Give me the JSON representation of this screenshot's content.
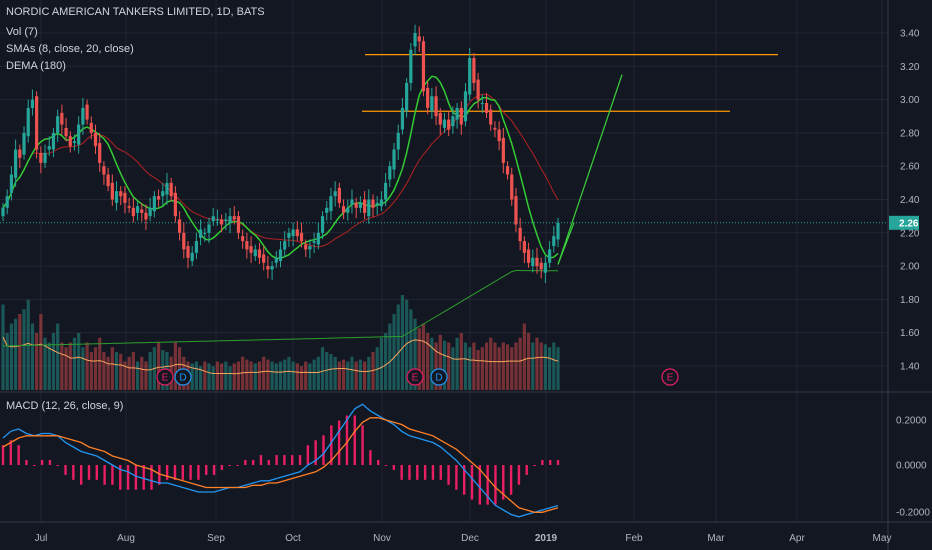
{
  "legend": {
    "title": "NORDIC AMERICAN TANKERS LIMITED, 1D, BATS",
    "vol": "Vol (7)",
    "smas": "SMAs (8, close, 20, close)",
    "dema": "DEMA (180)",
    "macd": "MACD (12, 26, close, 9)"
  },
  "colors": {
    "background": "#131722",
    "grid": "#232632",
    "up": "#26a69a",
    "down": "#ef5350",
    "sma8": "#33cc33",
    "sma20": "#b22222",
    "dema": "#2e9e2e",
    "vol_ma": "#f7a35c",
    "macd": "#2196f3",
    "signal": "#ff7f27",
    "hist": "#e91e63",
    "hline": "#ff9800",
    "arrow": "#3bd13b",
    "price_badge": "#26a69a",
    "event": "#e91e63",
    "event_d": "#2196f3"
  },
  "price_badge": "2.26",
  "chart_data": {
    "type": "candlestick",
    "y_ticks": [
      "3.40",
      "3.20",
      "3.00",
      "2.80",
      "2.60",
      "2.40",
      "2.20",
      "2.00",
      "1.80",
      "1.60",
      "1.40"
    ],
    "x_ticks": [
      "Jul",
      "Aug",
      "Sep",
      "Oct",
      "Nov",
      "Dec",
      "2019",
      "Feb",
      "Mar",
      "Apr",
      "May"
    ],
    "macd_ticks": [
      "0.2000",
      "0.0000",
      "-0.2000"
    ],
    "last_price": 2.26,
    "horizontal_lines": [
      3.27,
      2.93
    ],
    "projection": [
      [
        2.01,
        2.26
      ],
      [
        2.02,
        3.15
      ]
    ],
    "events": [
      "E",
      "D",
      "E",
      "D",
      "E"
    ],
    "closes": [
      2.35,
      2.42,
      2.55,
      2.7,
      2.65,
      2.8,
      2.95,
      3.0,
      2.7,
      2.62,
      2.68,
      2.72,
      2.8,
      2.9,
      2.85,
      2.78,
      2.72,
      2.75,
      2.85,
      2.95,
      2.88,
      2.8,
      2.72,
      2.62,
      2.55,
      2.48,
      2.4,
      2.45,
      2.42,
      2.38,
      2.35,
      2.3,
      2.36,
      2.32,
      2.28,
      2.35,
      2.42,
      2.4,
      2.45,
      2.5,
      2.42,
      2.3,
      2.2,
      2.1,
      2.05,
      2.08,
      2.15,
      2.22,
      2.2,
      2.25,
      2.3,
      2.28,
      2.25,
      2.28,
      2.3,
      2.28,
      2.2,
      2.15,
      2.1,
      2.08,
      2.1,
      2.05,
      2.02,
      1.98,
      2.0,
      2.05,
      2.1,
      2.15,
      2.2,
      2.22,
      2.18,
      2.15,
      2.1,
      2.12,
      2.15,
      2.2,
      2.3,
      2.35,
      2.42,
      2.45,
      2.38,
      2.32,
      2.35,
      2.4,
      2.35,
      2.38,
      2.32,
      2.4,
      2.35,
      2.38,
      2.4,
      2.5,
      2.6,
      2.7,
      2.8,
      2.95,
      3.1,
      3.3,
      3.4,
      3.35,
      3.05,
      2.95,
      3.02,
      2.9,
      2.85,
      2.88,
      2.82,
      2.9,
      2.95,
      2.85,
      3.05,
      3.25,
      3.1,
      3.0,
      2.98,
      2.92,
      2.85,
      2.82,
      2.75,
      2.62,
      2.55,
      2.4,
      2.25,
      2.15,
      2.08,
      2.02,
      2.05,
      2.0,
      1.98,
      2.02,
      2.1,
      2.18,
      2.26
    ],
    "volume_pct": [
      0.9,
      0.6,
      0.7,
      0.75,
      0.8,
      0.85,
      0.95,
      0.7,
      0.6,
      0.8,
      0.55,
      0.5,
      0.6,
      0.7,
      0.5,
      0.45,
      0.5,
      0.55,
      0.6,
      0.45,
      0.5,
      0.4,
      0.45,
      0.55,
      0.4,
      0.35,
      0.45,
      0.4,
      0.38,
      0.3,
      0.35,
      0.4,
      0.3,
      0.35,
      0.3,
      0.4,
      0.45,
      0.5,
      0.42,
      0.4,
      0.35,
      0.5,
      0.45,
      0.35,
      0.3,
      0.28,
      0.3,
      0.25,
      0.3,
      0.28,
      0.25,
      0.3,
      0.28,
      0.3,
      0.25,
      0.28,
      0.3,
      0.35,
      0.32,
      0.3,
      0.28,
      0.3,
      0.35,
      0.32,
      0.3,
      0.28,
      0.3,
      0.32,
      0.35,
      0.3,
      0.28,
      0.25,
      0.3,
      0.28,
      0.32,
      0.35,
      0.45,
      0.4,
      0.38,
      0.35,
      0.3,
      0.32,
      0.3,
      0.35,
      0.3,
      0.32,
      0.3,
      0.35,
      0.4,
      0.45,
      0.55,
      0.6,
      0.7,
      0.8,
      0.9,
      1.0,
      0.95,
      0.85,
      0.75,
      0.65,
      0.7,
      0.6,
      0.55,
      0.5,
      0.58,
      0.52,
      0.5,
      0.45,
      0.55,
      0.6,
      0.5,
      0.45,
      0.5,
      0.42,
      0.45,
      0.5,
      0.55,
      0.5,
      0.45,
      0.5,
      0.48,
      0.45,
      0.5,
      0.55,
      0.7,
      0.6,
      0.5,
      0.55,
      0.5,
      0.48,
      0.45,
      0.5,
      0.45
    ],
    "macd": [
      0.12,
      0.15,
      0.16,
      0.14,
      0.13,
      0.14,
      0.14,
      0.13,
      0.1,
      0.08,
      0.06,
      0.05,
      0.04,
      0.02,
      0.0,
      -0.02,
      -0.03,
      -0.05,
      -0.06,
      -0.07,
      -0.08,
      -0.08,
      -0.09,
      -0.1,
      -0.11,
      -0.12,
      -0.12,
      -0.12,
      -0.11,
      -0.1,
      -0.1,
      -0.09,
      -0.08,
      -0.07,
      -0.07,
      -0.06,
      -0.05,
      -0.04,
      -0.03,
      0.0,
      0.02,
      0.05,
      0.1,
      0.15,
      0.2,
      0.25,
      0.27,
      0.24,
      0.22,
      0.2,
      0.18,
      0.15,
      0.13,
      0.12,
      0.11,
      0.1,
      0.08,
      0.05,
      0.02,
      -0.02,
      -0.06,
      -0.1,
      -0.14,
      -0.18,
      -0.2,
      -0.22,
      -0.23,
      -0.22,
      -0.21,
      -0.2,
      -0.19,
      -0.18
    ],
    "signal": [
      0.08,
      0.1,
      0.12,
      0.13,
      0.13,
      0.13,
      0.13,
      0.13,
      0.12,
      0.11,
      0.1,
      0.08,
      0.07,
      0.06,
      0.04,
      0.03,
      0.02,
      0.0,
      -0.01,
      -0.02,
      -0.04,
      -0.05,
      -0.06,
      -0.07,
      -0.08,
      -0.09,
      -0.1,
      -0.1,
      -0.1,
      -0.1,
      -0.1,
      -0.1,
      -0.09,
      -0.09,
      -0.08,
      -0.08,
      -0.07,
      -0.06,
      -0.05,
      -0.04,
      -0.03,
      -0.01,
      0.02,
      0.06,
      0.1,
      0.15,
      0.19,
      0.21,
      0.21,
      0.2,
      0.19,
      0.18,
      0.16,
      0.15,
      0.14,
      0.13,
      0.11,
      0.09,
      0.07,
      0.04,
      0.01,
      -0.02,
      -0.06,
      -0.1,
      -0.13,
      -0.16,
      -0.19,
      -0.2,
      -0.21,
      -0.21,
      -0.2,
      -0.19
    ]
  }
}
